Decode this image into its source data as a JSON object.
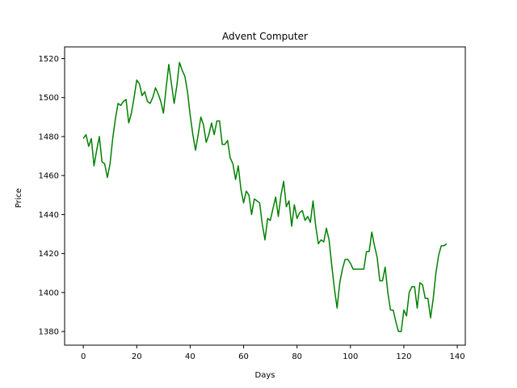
{
  "chart_data": {
    "type": "line",
    "title": "Advent Computer",
    "xlabel": "Days",
    "ylabel": "Price",
    "xlim": [
      -7,
      143
    ],
    "ylim": [
      1373,
      1526
    ],
    "xticks": [
      0,
      20,
      40,
      60,
      80,
      100,
      120,
      140
    ],
    "yticks": [
      1380,
      1400,
      1420,
      1440,
      1460,
      1480,
      1500,
      1520
    ],
    "grid": false,
    "series": [
      {
        "color": "#008000",
        "x": [
          0,
          1,
          2,
          3,
          4,
          5,
          6,
          7,
          8,
          9,
          10,
          11,
          12,
          13,
          14,
          15,
          16,
          17,
          18,
          19,
          20,
          21,
          22,
          23,
          24,
          25,
          26,
          27,
          28,
          29,
          30,
          31,
          32,
          33,
          34,
          35,
          36,
          37,
          38,
          39,
          40,
          41,
          42,
          43,
          44,
          45,
          46,
          47,
          48,
          49,
          50,
          51,
          52,
          53,
          54,
          55,
          56,
          57,
          58,
          59,
          60,
          61,
          62,
          63,
          64,
          65,
          66,
          67,
          68,
          69,
          70,
          71,
          72,
          73,
          74,
          75,
          76,
          77,
          78,
          79,
          80,
          81,
          82,
          83,
          84,
          85,
          86,
          87,
          88,
          89,
          90,
          91,
          92,
          93,
          94,
          95,
          96,
          97,
          98,
          99,
          100,
          101,
          102,
          103,
          104,
          105,
          106,
          107,
          108,
          109,
          110,
          111,
          112,
          113,
          114,
          115,
          116,
          117,
          118,
          119,
          120,
          121,
          122,
          123,
          124,
          125,
          126,
          127,
          128,
          129,
          130,
          131,
          132,
          133,
          134,
          135,
          136
        ],
        "y": [
          1479,
          1481,
          1475,
          1479,
          1465,
          1473,
          1480,
          1467,
          1466,
          1459,
          1466,
          1479,
          1489,
          1497,
          1496,
          1498,
          1499,
          1487,
          1492,
          1500,
          1509,
          1507,
          1501,
          1503,
          1498,
          1497,
          1500,
          1505,
          1502,
          1498,
          1492,
          1505,
          1517,
          1507,
          1497,
          1506,
          1518,
          1514,
          1511,
          1503,
          1491,
          1481,
          1473,
          1481,
          1490,
          1486,
          1477,
          1481,
          1487,
          1481,
          1488,
          1488,
          1476,
          1476,
          1478,
          1469,
          1466,
          1458,
          1465,
          1453,
          1446,
          1452,
          1450,
          1440,
          1448,
          1447,
          1446,
          1435,
          1427,
          1438,
          1437,
          1443,
          1449,
          1439,
          1450,
          1457,
          1444,
          1447,
          1434,
          1445,
          1438,
          1441,
          1442,
          1437,
          1439,
          1436,
          1447,
          1434,
          1425,
          1427,
          1426,
          1433,
          1427,
          1414,
          1402,
          1392,
          1405,
          1412,
          1417,
          1417,
          1415,
          1412,
          1412,
          1412,
          1412,
          1412,
          1421,
          1421,
          1431,
          1424,
          1418,
          1406,
          1406,
          1413,
          1400,
          1391,
          1391,
          1385,
          1380,
          1380,
          1391,
          1388,
          1400,
          1403,
          1403,
          1392,
          1405,
          1404,
          1397,
          1397,
          1387,
          1397,
          1410,
          1419,
          1424,
          1424,
          1425
        ]
      }
    ]
  }
}
